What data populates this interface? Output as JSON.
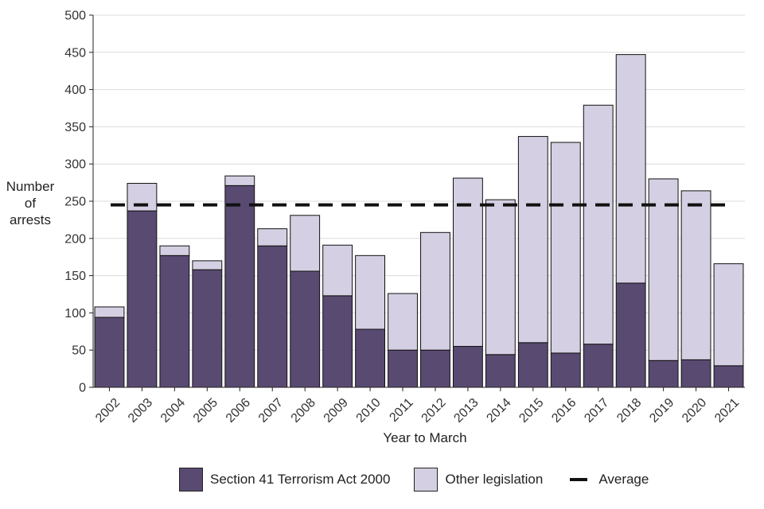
{
  "chart_data": {
    "type": "bar",
    "stacked": true,
    "ylabel_lines": [
      "Number",
      "of",
      "arrests"
    ],
    "xlabel": "Year to March",
    "ylim": [
      0,
      500
    ],
    "yticks": [
      0,
      50,
      100,
      150,
      200,
      250,
      300,
      350,
      400,
      450,
      500
    ],
    "grid": "horizontal",
    "legend_position": "bottom",
    "categories": [
      "2002",
      "2003",
      "2004",
      "2005",
      "2006",
      "2007",
      "2008",
      "2009",
      "2010",
      "2011",
      "2012",
      "2013",
      "2014",
      "2015",
      "2016",
      "2017",
      "2018",
      "2019",
      "2020",
      "2021"
    ],
    "series": [
      {
        "name": "Section 41 Terrorism Act 2000",
        "color": "#594a72",
        "values": [
          94,
          237,
          177,
          158,
          271,
          190,
          156,
          123,
          78,
          50,
          50,
          55,
          44,
          60,
          46,
          58,
          140,
          36,
          37,
          29
        ]
      },
      {
        "name": "Other legislation",
        "color": "#d4cfe2",
        "values": [
          14,
          37,
          13,
          12,
          13,
          23,
          75,
          68,
          99,
          76,
          158,
          226,
          208,
          277,
          283,
          321,
          307,
          244,
          227,
          137
        ]
      }
    ],
    "average": {
      "name": "Average",
      "value": 245
    }
  }
}
